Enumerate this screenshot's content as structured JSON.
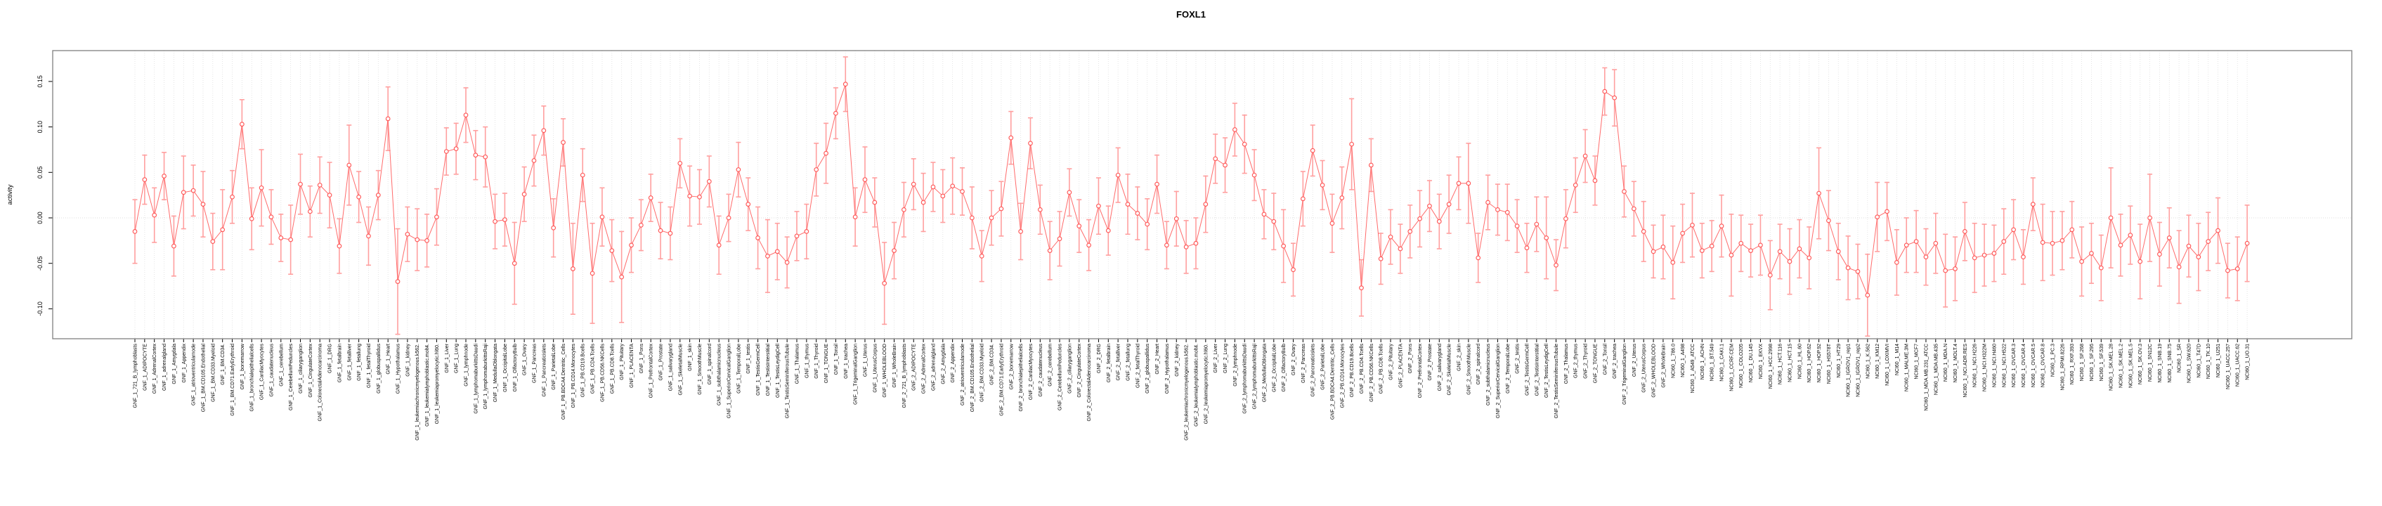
{
  "chart_data": {
    "type": "scatter",
    "subtype": "points-with-error-bars-connected-by-lines",
    "title": "FOXL1",
    "xlabel": "",
    "ylabel": "activity",
    "ylim": [
      -0.148,
      0.185
    ],
    "yticks": [
      0.15,
      0.1,
      0.05,
      0.0,
      -0.05,
      -0.1
    ],
    "grid": "vertical-dotted-per-category-plus-zero-line",
    "legend": "none",
    "point_color": "#ff5252",
    "line_color": "#ff6b6b",
    "errorbar_color": "#ff9f9f",
    "axis_color": "#000000",
    "box_color": "#7f7f7f",
    "grid_color": "#dedede",
    "categories": [
      "GNF_1_721_B_lymphoblasts",
      "GNF_1_ADIPOCYTE",
      "GNF_1_AdrenalCortex",
      "GNF_1_adrenalgland",
      "GNF_1_Amygdala",
      "GNF_1_Appendix",
      "GNF_1_atrioventricularnode",
      "GNF_1_BM.CD105.Endothelial",
      "GNF_1_BM.CD33.Myeloid",
      "GNF_1_BM.CD34.",
      "GNF_1_BM.CD71.EarlyErythroid",
      "GNF_1_bonemarrow",
      "GNF_1_bronchialepithelialcells",
      "GNF_1_CardiacMyocytes",
      "GNF_1_caudatenucleus",
      "GNF_1_cerebellum",
      "GNF_1_CerebellumPeduncles",
      "GNF_1_ciliaryganglion",
      "GNF_1_CingulateCortex",
      "GNF_1_ColorectalAdenocarcinoma",
      "GNF_1_DRG",
      "GNF_1_fetalbrain",
      "GNF_1_fetalliver",
      "GNF_1_fetallung",
      "GNF_1_fetalThyroid",
      "GNF_1_globuspallidus",
      "GNF_1_Heart",
      "GNF_1_Hypothalamus",
      "GNF_1_kidney",
      "GNF_1_leukemiachronicmyelogenous.k562.",
      "GNF_1_leukemialymphoblastic.molt4.",
      "GNF_1_leukemiapromyelocytic.hl60.",
      "GNF_1_Liver",
      "GNF_1_Lung",
      "GNF_1_lymphnode",
      "GNF_1_lymphomaburkittsDaudi",
      "GNF_1_lymphomaburkittsRaji",
      "GNF_1_MedullaOblongata",
      "GNF_1_OccipitalLobe",
      "GNF_1_OlfactoryBulb",
      "GNF_1_Ovary",
      "GNF_1_Pancreas",
      "GNF_1_Pancreaticislets",
      "GNF_1_ParietalLobe",
      "GNF_1_PB.BDCA4.Dentritic_Cells",
      "GNF_1_PB.CD14.Monocytes",
      "GNF_1_PB.CD19.Bcells",
      "GNF_1_PB.CD4.Tcells",
      "GNF_1_PB.CD56.NKCells",
      "GNF_1_PB.CD8.Tcells",
      "GNF_1_Pituitary",
      "GNF_1_PLACENTA",
      "GNF_1_Pons",
      "GNF_1_PrefrontalCortex",
      "GNF_1_Prostate",
      "GNF_1_salivarygland",
      "GNF_1_SkeletalMuscle",
      "GNF_1_skin",
      "GNF_1_SmoothMuscle",
      "GNF_1_spinalcord",
      "GNF_1_subthalamicnucleus",
      "GNF_1_SuperiorCervicalGanglion",
      "GNF_1_TemporalLobe",
      "GNF_1_testis",
      "GNF_1_TestisGermCell",
      "GNF_1_TestisInterstitial",
      "GNF_1_TestisLeydigCell",
      "GNF_1_TestisSeminiferousTubule",
      "GNF_1_Thalamus",
      "GNF_1_thymus",
      "GNF_1_Thyroid",
      "GNF_1_TONGUE",
      "GNF_1_Tonsil",
      "GNF_1_trachea",
      "GNF_1_TrigeminalGanglion",
      "GNF_1_Uterus",
      "GNF_1_UterusCorpus",
      "GNF_1_WHOLEBLOOD",
      "GNF_1_WholeBrain",
      "GNF_2_721_B_lymphoblasts",
      "GNF_2_ADIPOCYTE",
      "GNF_2_AdrenalCortex",
      "GNF_2_adrenalgland",
      "GNF_2_Amygdala",
      "GNF_2_Appendix",
      "GNF_2_atrioventricularnode",
      "GNF_2_BM.CD105.Endothelial",
      "GNF_2_BM.CD33.Myeloid",
      "GNF_2_BM.CD34.",
      "GNF_2_BM.CD71.EarlyErythroid",
      "GNF_2_bonemarrow",
      "GNF_2_bronchialepithelialcells",
      "GNF_2_CardiacMyocytes",
      "GNF_2_caudatenucleus",
      "GNF_2_cerebellum",
      "GNF_2_CerebellumPeduncles",
      "GNF_2_ciliaryganglion",
      "GNF_2_CingulateCortex",
      "GNF_2_ColorectalAdenocarcinoma",
      "GNF_2_DRG",
      "GNF_2_fetalbrain",
      "GNF_2_fetalliver",
      "GNF_2_fetallung",
      "GNF_2_fetalThyroid",
      "GNF_2_globuspallidus",
      "GNF_2_Heart",
      "GNF_2_Hypothalamus",
      "GNF_2_kidney",
      "GNF_2_leukemiachronicmyelogenous.k562.",
      "GNF_2_leukemialymphoblastic.molt4.",
      "GNF_2_leukemiapromyelocytic.hl60.",
      "GNF_2_Liver",
      "GNF_2_Lung",
      "GNF_2_lymphnode",
      "GNF_2_lymphomaburkittsDaudi",
      "GNF_2_lymphomaburkittsRaji",
      "GNF_2_MedullaOblongata",
      "GNF_2_OccipitalLobe",
      "GNF_2_OlfactoryBulb",
      "GNF_2_Ovary",
      "GNF_2_Pancreas",
      "GNF_2_Pancreaticislets",
      "GNF_2_ParietalLobe",
      "GNF_2_PB.BDCA4.Dentritic_Cells",
      "GNF_2_PB.CD14.Monocytes",
      "GNF_2_PB.CD19.Bcells",
      "GNF_2_PB.CD4.Tcells",
      "GNF_2_PB.CD56.NKCells",
      "GNF_2_PB.CD8.Tcells",
      "GNF_2_Pituitary",
      "GNF_2_PLACENTA",
      "GNF_2_Pons",
      "GNF_2_PrefrontalCortex",
      "GNF_2_Prostate",
      "GNF_2_salivarygland",
      "GNF_2_SkeletalMuscle",
      "GNF_2_skin",
      "GNF_2_SmoothMuscle",
      "GNF_2_spinalcord",
      "GNF_2_subthalamicnucleus",
      "GNF_2_SuperiorCervicalGanglion",
      "GNF_2_TemporalLobe",
      "GNF_2_testis",
      "GNF_2_TestisGermCell",
      "GNF_2_TestisInterstitial",
      "GNF_2_TestisLeydigCell",
      "GNF_2_TestisSeminiferousTubule",
      "GNF_2_Thalamus",
      "GNF_2_thymus",
      "GNF_2_Thyroid",
      "GNF_2_TONGUE",
      "GNF_2_Tonsil",
      "GNF_2_trachea",
      "GNF_2_TrigeminalGanglion",
      "GNF_2_Uterus",
      "GNF_2_UterusCorpus",
      "GNF_2_WHOLEBLOOD",
      "GNF_2_WholeBrain",
      "NCI60_1_786.0",
      "NCI60_1_A498",
      "NCI60_1_A549_ATCC",
      "NCI60_1_ACHN",
      "NCI60_1_BT.549",
      "NCI60_1_CAKI.1",
      "NCI60_1_CCRF.CEM",
      "NCI60_1_COLO205",
      "NCI60_1_DU.145",
      "NCI60_1_EKVX",
      "NCI60_1_HCC.2998",
      "NCI60_1_HCT.116",
      "NCI60_1_HCT.15",
      "NCI60_1_HL.60",
      "NCI60_1_HOP.62",
      "NCI60_1_HOP.92",
      "NCI60_1_HS578T",
      "NCI60_1_HT29",
      "NCI60_1_IGROV1_rep1",
      "NCI60_1_IGROV1_rep2",
      "NCI60_1_K.562",
      "NCI60_1_KM12",
      "NCI60_1_LOXIMVI",
      "NCI60_1_M14",
      "NCI60_1_MALME.3M",
      "NCI60_1_MCF7",
      "NCI60_1_MDA.MB.231_ATCC",
      "NCI60_1_MDA.MB.435",
      "NCI60_1_MDA.N",
      "NCI60_1_MOLT.4",
      "NCI60_1_NCI.ADR.RES",
      "NCI60_1_NCI.H226",
      "NCI60_1_NCI.H322M",
      "NCI60_1_NCI.H460",
      "NCI60_1_NCI.H522",
      "NCI60_1_OVCAR.3",
      "NCI60_1_OVCAR.4",
      "NCI60_1_OVCAR.5",
      "NCI60_1_OVCAR.8",
      "NCI60_1_PC.3",
      "NCI60_1_RPMI.8226",
      "NCI60_1_RXF.393",
      "NCI60_1_SF.268",
      "NCI60_1_SF.295",
      "NCI60_1_SF.539",
      "NCI60_1_SK.MEL.28",
      "NCI60_1_SK.MEL.2",
      "NCI60_1_SK.MEL.5",
      "NCI60_1_SK.OV.3",
      "NCI60_1_SN12C",
      "NCI60_1_SNB.19",
      "NCI60_1_SNB.75",
      "NCI60_1_SR",
      "NCI60_1_SW.620",
      "NCI60_1_T47D",
      "NCI60_1_TK.10",
      "NCI60_1_U251",
      "NCI60_1_UACC.257",
      "NCI60_1_UACC.62",
      "NCI60_1_UO.31"
    ],
    "values": [
      -0.015,
      0.042,
      0.003,
      0.046,
      -0.031,
      0.028,
      0.03,
      0.015,
      -0.026,
      -0.013,
      0.023,
      0.103,
      -0.001,
      0.033,
      0.001,
      -0.022,
      -0.024,
      0.037,
      0.007,
      0.036,
      0.025,
      -0.031,
      0.058,
      0.023,
      -0.02,
      0.025,
      0.109,
      -0.07,
      -0.018,
      -0.024,
      -0.025,
      0.001,
      0.073,
      0.076,
      0.113,
      0.069,
      0.067,
      -0.004,
      -0.002,
      -0.05,
      0.026,
      0.063,
      0.096,
      -0.011,
      0.083,
      -0.056,
      0.047,
      -0.061,
      0.001,
      -0.036,
      -0.065,
      -0.03,
      -0.008,
      0.022,
      -0.014,
      -0.017,
      0.06,
      0.024,
      0.023,
      0.04,
      -0.03,
      0.0,
      0.053,
      0.015,
      -0.022,
      -0.042,
      -0.037,
      -0.049,
      -0.02,
      -0.015,
      0.053,
      0.071,
      0.115,
      0.147,
      0.001,
      0.042,
      0.017,
      -0.072,
      -0.036,
      0.009,
      0.037,
      0.017,
      0.034,
      0.024,
      0.035,
      0.029,
      0.0,
      -0.042,
      0.0,
      0.01,
      0.088,
      -0.015,
      0.082,
      0.009,
      -0.036,
      -0.023,
      0.028,
      -0.009,
      -0.03,
      0.013,
      -0.014,
      0.047,
      0.015,
      0.005,
      -0.007,
      0.037,
      -0.03,
      -0.001,
      -0.032,
      -0.028,
      0.015,
      0.065,
      0.058,
      0.097,
      0.081,
      0.047,
      0.004,
      -0.004,
      -0.031,
      -0.057,
      0.021,
      0.074,
      0.036,
      -0.006,
      0.022,
      0.081,
      -0.077,
      0.058,
      -0.045,
      -0.021,
      -0.034,
      -0.015,
      -0.001,
      0.013,
      -0.004,
      0.015,
      0.038,
      0.038,
      -0.044,
      0.017,
      0.009,
      0.006,
      -0.009,
      -0.033,
      -0.007,
      -0.022,
      -0.052,
      -0.001,
      0.036,
      0.068,
      0.041,
      0.139,
      0.132,
      0.029,
      0.01,
      -0.015,
      -0.037,
      -0.032,
      -0.049,
      -0.017,
      -0.008,
      -0.036,
      -0.031,
      -0.009,
      -0.041,
      -0.028,
      -0.036,
      -0.03,
      -0.063,
      -0.037,
      -0.048,
      -0.034,
      -0.044,
      0.027,
      -0.003,
      -0.037,
      -0.055,
      -0.059,
      -0.085,
      0.001,
      0.007,
      -0.049,
      -0.03,
      -0.026,
      -0.043,
      -0.028,
      -0.058,
      -0.056,
      -0.015,
      -0.044,
      -0.041,
      -0.039,
      -0.026,
      -0.013,
      -0.043,
      0.015,
      -0.027,
      -0.028,
      -0.025,
      -0.013,
      -0.048,
      -0.039,
      -0.055,
      0.0,
      -0.03,
      -0.019,
      -0.048,
      0.0,
      -0.04,
      -0.022,
      -0.054,
      -0.031,
      -0.043,
      -0.026,
      -0.014,
      -0.058,
      -0.056,
      -0.028
    ],
    "errors": [
      0.035,
      0.027,
      0.03,
      0.026,
      0.033,
      0.04,
      0.028,
      0.036,
      0.031,
      0.044,
      0.029,
      0.027,
      0.034,
      0.042,
      0.03,
      0.026,
      0.038,
      0.033,
      0.028,
      0.031,
      0.036,
      0.03,
      0.044,
      0.028,
      0.032,
      0.027,
      0.035,
      0.058,
      0.03,
      0.034,
      0.029,
      0.031,
      0.026,
      0.028,
      0.03,
      0.027,
      0.033,
      0.03,
      0.029,
      0.045,
      0.03,
      0.028,
      0.027,
      0.032,
      0.026,
      0.05,
      0.029,
      0.055,
      0.032,
      0.034,
      0.05,
      0.03,
      0.028,
      0.026,
      0.031,
      0.029,
      0.027,
      0.033,
      0.03,
      0.028,
      0.032,
      0.026,
      0.03,
      0.029,
      0.034,
      0.04,
      0.031,
      0.028,
      0.027,
      0.03,
      0.029,
      0.033,
      0.028,
      0.03,
      0.032,
      0.036,
      0.027,
      0.045,
      0.031,
      0.03,
      0.028,
      0.032,
      0.027,
      0.029,
      0.031,
      0.026,
      0.034,
      0.028,
      0.03,
      0.03,
      0.029,
      0.031,
      0.028,
      0.027,
      0.032,
      0.03,
      0.026,
      0.029,
      0.028,
      0.031,
      0.027,
      0.03,
      0.033,
      0.029,
      0.028,
      0.032,
      0.026,
      0.03,
      0.029,
      0.028,
      0.031,
      0.027,
      0.03,
      0.029,
      0.032,
      0.028,
      0.027,
      0.031,
      0.04,
      0.029,
      0.03,
      0.028,
      0.027,
      0.032,
      0.034,
      0.05,
      0.031,
      0.029,
      0.028,
      0.03,
      0.027,
      0.029,
      0.031,
      0.028,
      0.03,
      0.032,
      0.029,
      0.044,
      0.027,
      0.03,
      0.028,
      0.031,
      0.029,
      0.027,
      0.03,
      0.045,
      0.028,
      0.032,
      0.03,
      0.029,
      0.027,
      0.026,
      0.031,
      0.028,
      0.03,
      0.033,
      0.029,
      0.035,
      0.04,
      0.032,
      0.035,
      0.03,
      0.028,
      0.034,
      0.045,
      0.031,
      0.029,
      0.033,
      0.038,
      0.03,
      0.036,
      0.032,
      0.034,
      0.05,
      0.033,
      0.031,
      0.035,
      0.03,
      0.045,
      0.038,
      0.032,
      0.036,
      0.03,
      0.034,
      0.031,
      0.033,
      0.04,
      0.035,
      0.032,
      0.038,
      0.034,
      0.031,
      0.036,
      0.033,
      0.03,
      0.029,
      0.042,
      0.035,
      0.032,
      0.031,
      0.038,
      0.033,
      0.036,
      0.055,
      0.034,
      0.032,
      0.041,
      0.048,
      0.035,
      0.033,
      0.04,
      0.034,
      0.037,
      0.032,
      0.036,
      0.03,
      0.035,
      0.042
    ]
  }
}
